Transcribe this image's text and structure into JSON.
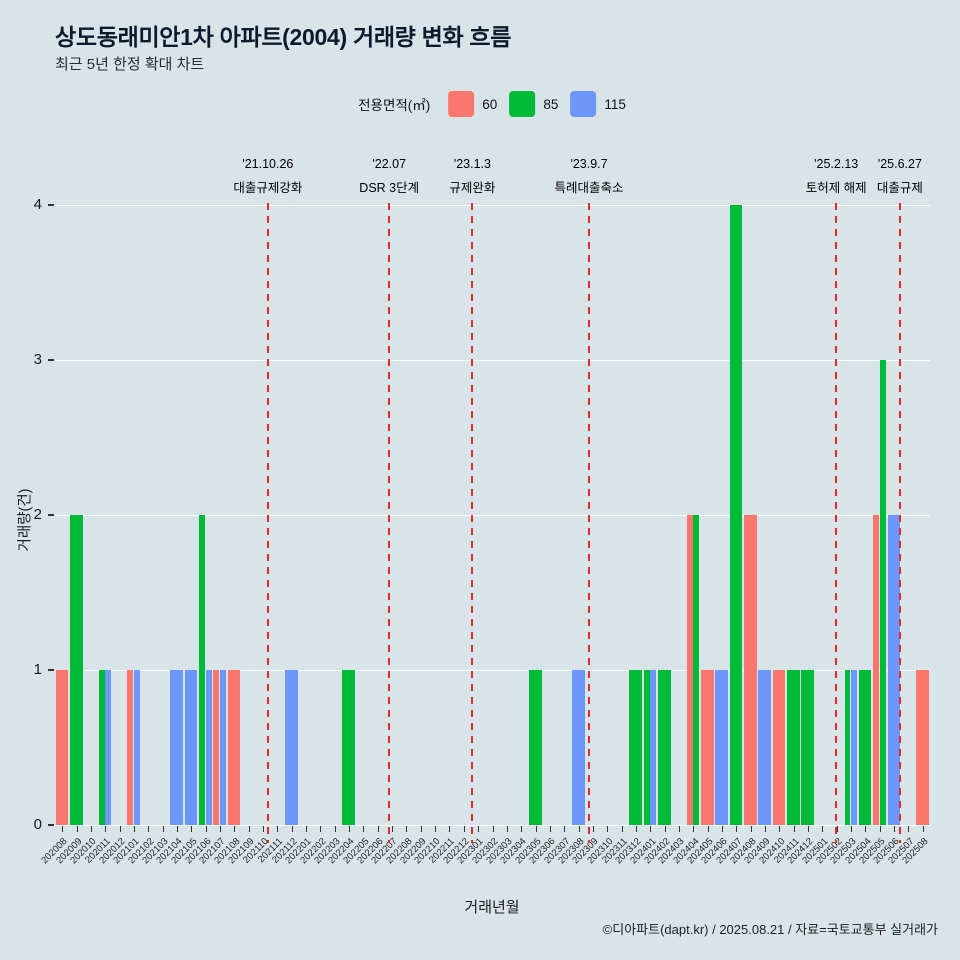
{
  "page": {
    "title": "상도동래미안1차 아파트(2004) 거래량 변화 흐름",
    "subtitle": "최근 5년 한정 확대 차트",
    "footer": "©디아파트(dapt.kr) / 2025.08.21 / 자료=국토교통부 실거래가"
  },
  "legend": {
    "label": "전용면적(㎡)",
    "items": [
      {
        "name": "60",
        "color": "#f8766d"
      },
      {
        "name": "85",
        "color": "#00ba38"
      },
      {
        "name": "115",
        "color": "#6d96fa"
      }
    ]
  },
  "colors": {
    "background": "#d9e4e9",
    "annotation_line": "#e8282c",
    "gridline": "#ffffff"
  },
  "chart_data": {
    "type": "bar",
    "title": "상도동래미안1차 아파트(2004) 거래량 변화 흐름",
    "xlabel": "거래년월",
    "ylabel": "거래량(건)",
    "ylim": [
      0,
      4
    ],
    "yticks": [
      0,
      1,
      2,
      3,
      4
    ],
    "legend_position": "top",
    "grid": true,
    "categories": [
      "202008",
      "202009",
      "202010",
      "202011",
      "202012",
      "202101",
      "202102",
      "202103",
      "202104",
      "202105",
      "202106",
      "202107",
      "202108",
      "202109",
      "202110",
      "202111",
      "202112",
      "202201",
      "202202",
      "202203",
      "202204",
      "202205",
      "202206",
      "202207",
      "202208",
      "202209",
      "202210",
      "202211",
      "202212",
      "202301",
      "202302",
      "202303",
      "202304",
      "202305",
      "202306",
      "202307",
      "202308",
      "202309",
      "202310",
      "202311",
      "202312",
      "202401",
      "202402",
      "202403",
      "202404",
      "202405",
      "202406",
      "202407",
      "202408",
      "202409",
      "202410",
      "202411",
      "202412",
      "202501",
      "202502",
      "202503",
      "202504",
      "202505",
      "202506",
      "202507",
      "202508"
    ],
    "series": [
      {
        "name": "60",
        "color": "#f8766d",
        "values": [
          1,
          0,
          0,
          0,
          0,
          1,
          0,
          0,
          0,
          0,
          0,
          1,
          1,
          0,
          0,
          0,
          0,
          0,
          0,
          0,
          0,
          0,
          0,
          0,
          0,
          0,
          0,
          0,
          0,
          0,
          0,
          0,
          0,
          0,
          0,
          0,
          0,
          0,
          0,
          0,
          0,
          0,
          0,
          0,
          2,
          1,
          0,
          0,
          2,
          0,
          1,
          0,
          0,
          0,
          0,
          0,
          0,
          2,
          0,
          0,
          1
        ]
      },
      {
        "name": "85",
        "color": "#00ba38",
        "values": [
          0,
          2,
          0,
          1,
          0,
          0,
          0,
          0,
          0,
          0,
          2,
          0,
          0,
          0,
          0,
          0,
          0,
          0,
          0,
          0,
          1,
          0,
          0,
          0,
          0,
          0,
          0,
          0,
          0,
          0,
          0,
          0,
          0,
          1,
          0,
          0,
          0,
          0,
          0,
          0,
          1,
          1,
          1,
          0,
          2,
          0,
          0,
          4,
          0,
          0,
          0,
          1,
          1,
          0,
          0,
          1,
          1,
          3,
          0,
          0,
          0
        ]
      },
      {
        "name": "115",
        "color": "#6d96fa",
        "values": [
          0,
          0,
          0,
          1,
          0,
          1,
          0,
          0,
          1,
          1,
          1,
          1,
          0,
          0,
          0,
          0,
          1,
          0,
          0,
          0,
          0,
          0,
          0,
          0,
          0,
          0,
          0,
          0,
          0,
          0,
          0,
          0,
          0,
          0,
          0,
          0,
          1,
          0,
          0,
          0,
          0,
          1,
          0,
          0,
          0,
          0,
          1,
          0,
          0,
          1,
          0,
          0,
          0,
          0,
          0,
          1,
          0,
          0,
          2,
          0,
          0
        ]
      }
    ],
    "annotations": [
      {
        "date": "'21.10.26",
        "text": "대출규제강화",
        "pos": 14.84
      },
      {
        "date": "'22.07",
        "text": "DSR 3단계",
        "pos": 23.3
      },
      {
        "date": "'23.1.3",
        "text": "규제완화",
        "pos": 29.1
      },
      {
        "date": "'23.9.7",
        "text": "특례대출축소",
        "pos": 37.23
      },
      {
        "date": "'25.2.13",
        "text": "토허제 해제",
        "pos": 54.46
      },
      {
        "date": "'25.6.27",
        "text": "대출규제",
        "pos": 58.9
      }
    ]
  }
}
